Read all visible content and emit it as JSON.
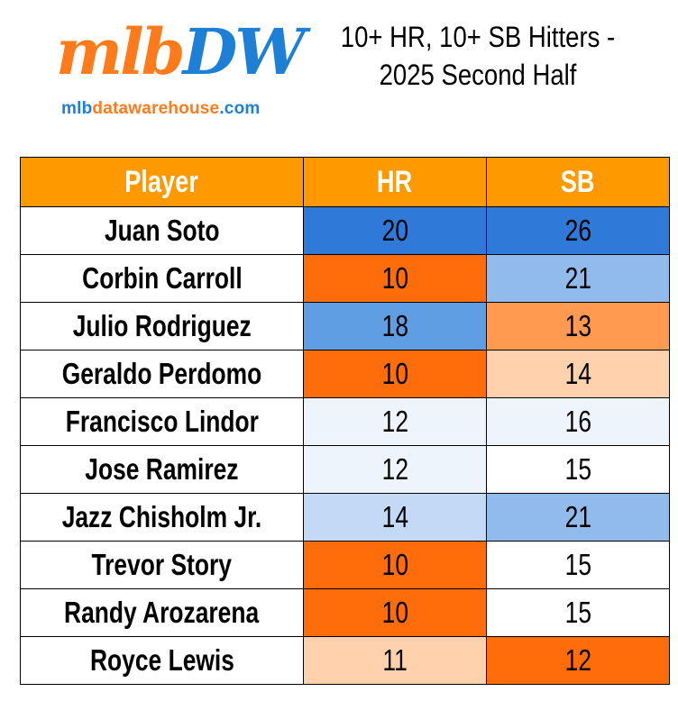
{
  "logo": {
    "wordmark_part1": "mlb",
    "wordmark_part2": "DW",
    "url_part1": "mlb",
    "url_part2": "datawarehouse",
    "url_part3": ".com"
  },
  "title_line1": "10+ HR, 10+ SB Hitters -",
  "title_line2": "2025 Second Half",
  "colors": {
    "header_bg": "#ff9900",
    "header_text": "#ffffff",
    "brand_orange": "#ff7a1a",
    "brand_blue": "#1e7fd6"
  },
  "chart_data": {
    "type": "table",
    "columns": [
      "Player",
      "HR",
      "SB"
    ],
    "rows": [
      {
        "player": "Juan Soto",
        "hr": 20,
        "sb": 26,
        "hr_color": "#2f7ad8",
        "sb_color": "#2f7ad8"
      },
      {
        "player": "Corbin Carroll",
        "hr": 10,
        "sb": 21,
        "hr_color": "#ff6d0a",
        "sb_color": "#90bbeb"
      },
      {
        "player": "Julio Rodriguez",
        "hr": 18,
        "sb": 13,
        "hr_color": "#5f9ee3",
        "sb_color": "#ff9a50"
      },
      {
        "player": "Geraldo Perdomo",
        "hr": 10,
        "sb": 14,
        "hr_color": "#ff6d0a",
        "sb_color": "#ffd1ad"
      },
      {
        "player": "Francisco Lindor",
        "hr": 12,
        "sb": 16,
        "hr_color": "#eef4fc",
        "sb_color": "#eef4fc"
      },
      {
        "player": "Jose Ramirez",
        "hr": 12,
        "sb": 15,
        "hr_color": "#eef4fc",
        "sb_color": "#ffffff"
      },
      {
        "player": "Jazz Chisholm Jr.",
        "hr": 14,
        "sb": 21,
        "hr_color": "#c2daf5",
        "sb_color": "#90bbeb"
      },
      {
        "player": "Trevor Story",
        "hr": 10,
        "sb": 15,
        "hr_color": "#ff6d0a",
        "sb_color": "#ffffff"
      },
      {
        "player": "Randy Arozarena",
        "hr": 10,
        "sb": 15,
        "hr_color": "#ff6d0a",
        "sb_color": "#ffffff"
      },
      {
        "player": "Royce Lewis",
        "hr": 11,
        "sb": 12,
        "hr_color": "#ffd1ad",
        "sb_color": "#ff6d0a"
      }
    ]
  }
}
